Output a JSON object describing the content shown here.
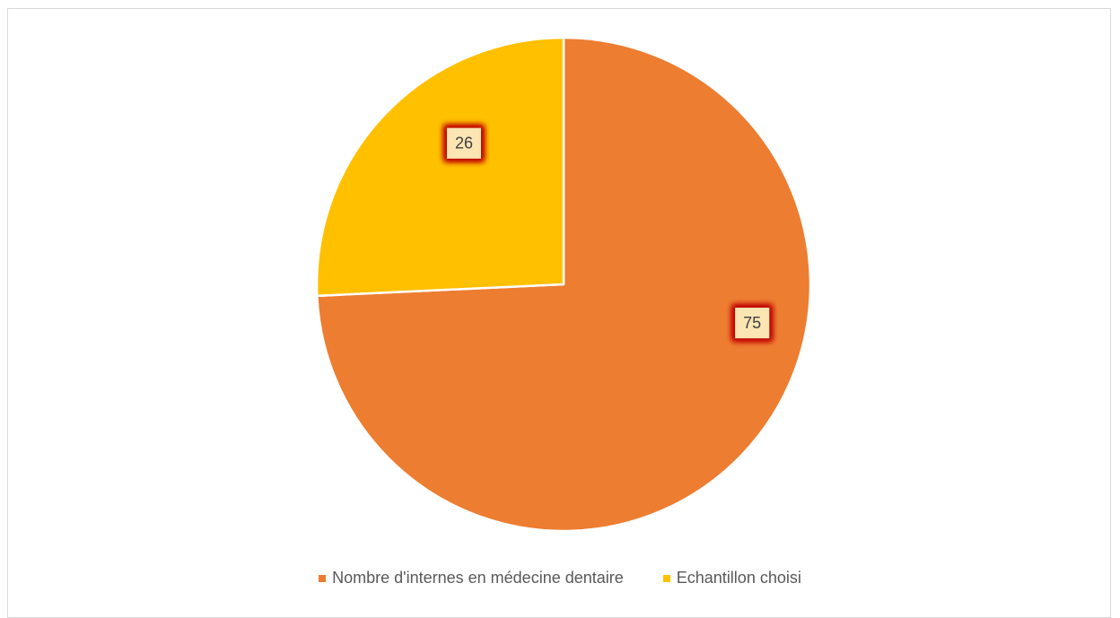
{
  "chart_data": {
    "type": "pie",
    "title": "",
    "slices": [
      {
        "label": "Nombre d'internes en médecine dentaire",
        "value": 75,
        "color": "#ED7D31"
      },
      {
        "label": "Echantillon choisi",
        "value": 26,
        "color": "#FFC000"
      }
    ],
    "data_label_style": {
      "fill": "#FBE5B3",
      "glow": "#C00000"
    },
    "legend_position": "bottom"
  }
}
